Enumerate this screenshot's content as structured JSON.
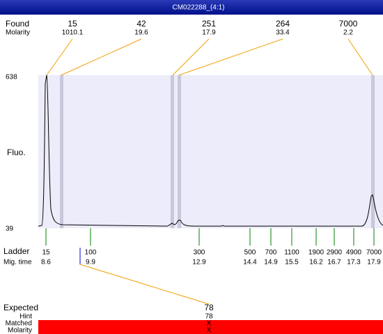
{
  "title": "CM022288_(4:1)",
  "found": {
    "label": "Found",
    "molarity_label": "Molarity",
    "peaks": [
      {
        "size": "15",
        "molarity": "1010.1"
      },
      {
        "size": "42",
        "molarity": "19.6"
      },
      {
        "size": "251",
        "molarity": "17.9"
      },
      {
        "size": "264",
        "molarity": "33.4"
      },
      {
        "size": "7000",
        "molarity": "2.2"
      }
    ]
  },
  "y_axis": {
    "label": "Fluo.",
    "max": "638",
    "min": "39"
  },
  "ladder": {
    "label": "Ladder",
    "mig_label": "Mig. time",
    "items": [
      {
        "size": "15",
        "time": "8.6"
      },
      {
        "size": "100",
        "time": "9.9"
      },
      {
        "size": "300",
        "time": "12.9"
      },
      {
        "size": "500",
        "time": "14.4"
      },
      {
        "size": "700",
        "time": "14.9"
      },
      {
        "size": "1100",
        "time": "15.5"
      },
      {
        "size": "1900",
        "time": "16.2"
      },
      {
        "size": "2900",
        "time": "16.7"
      },
      {
        "size": "4900",
        "time": "17.3"
      },
      {
        "size": "7000",
        "time": "17.9"
      }
    ]
  },
  "expected": {
    "label": "Expected",
    "value": "78"
  },
  "hint": {
    "label": "Hint",
    "value": "78"
  },
  "matched": {
    "label": "Matched",
    "value": "X"
  },
  "molarity": {
    "label": "Molarity",
    "value": "X"
  }
}
